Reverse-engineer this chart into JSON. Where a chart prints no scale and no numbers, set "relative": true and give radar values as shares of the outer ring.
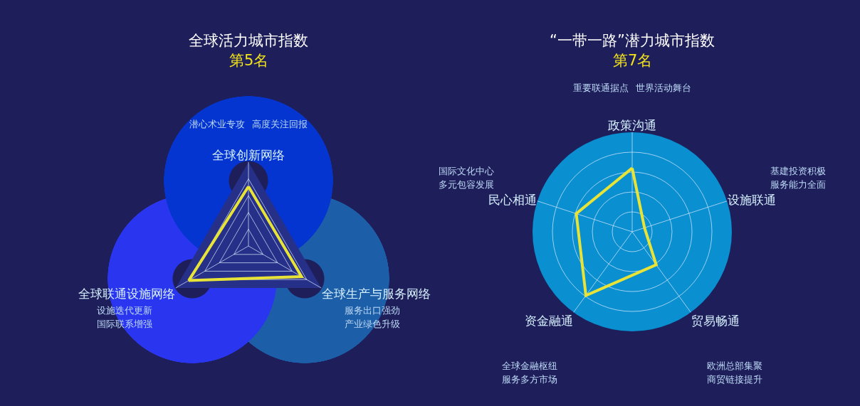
{
  "chart_data": [
    {
      "type": "radar",
      "title": "全球活力城市指数",
      "subtitle": "第5名",
      "relative": true,
      "grid": true,
      "categories": [
        "全球创新网络",
        "全球生产与服务网络",
        "全球联通设施网络"
      ],
      "series": [
        {
          "color": "#e8e337",
          "values": [
            0.71,
            0.73,
            0.82
          ]
        }
      ],
      "annotations": [
        "潜心术业专攻",
        "高度关注回报",
        "服务出口强劲",
        "产业绿色升级",
        "设施迭代更新",
        "国际联系增强"
      ]
    },
    {
      "type": "radar",
      "title": "“一带一路”潜力城市指数",
      "subtitle": "第7名",
      "relative": true,
      "grid": true,
      "categories": [
        "政策沟通",
        "设施联通",
        "贸易畅通",
        "资金融通",
        "民心相通"
      ],
      "series": [
        {
          "color": "#e8e337",
          "values": [
            0.64,
            0.13,
            0.41,
            0.79,
            0.59
          ]
        }
      ],
      "annotations": [
        "重要联通据点",
        "世界活动舞台",
        "基建投资积极",
        "服务能力全面",
        "欧洲总部集聚",
        "商贸链接提升",
        "全球金融枢纽",
        "服务多方市场",
        "国际文化中心",
        "多元包容发展"
      ]
    }
  ]
}
